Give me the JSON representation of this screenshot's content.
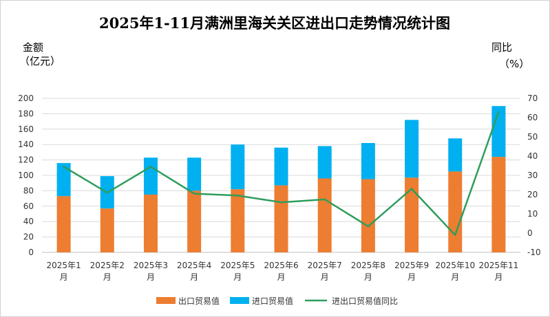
{
  "chart_data": {
    "type": "bar",
    "title": "2025年1-11月满洲里海关关区进出口走势情况统计图",
    "y_left_label_line1": "金额",
    "y_left_label_line2": "（亿元）",
    "y_right_label_line1": "同比",
    "y_right_label_line2": "（%）",
    "categories": [
      [
        "2025年1",
        "月"
      ],
      [
        "2025年2",
        "月"
      ],
      [
        "2025年3",
        "月"
      ],
      [
        "2025年4",
        "月"
      ],
      [
        "2025年5",
        "月"
      ],
      [
        "2025年6",
        "月"
      ],
      [
        "2025年7",
        "月"
      ],
      [
        "2025年8",
        "月"
      ],
      [
        "2025年9",
        "月"
      ],
      [
        "2025年10",
        "月"
      ],
      [
        "2025年11",
        "月"
      ]
    ],
    "series": [
      {
        "name": "出口贸易值",
        "type": "stacked-bar",
        "axis": "left",
        "color": "#ED7D31",
        "values": [
          73,
          57,
          75,
          80,
          82,
          87,
          96,
          95,
          97,
          105,
          124
        ]
      },
      {
        "name": "进口贸易值",
        "type": "stacked-bar",
        "axis": "left",
        "color": "#00B0F0",
        "values": [
          43,
          42,
          48,
          43,
          58,
          49,
          42,
          47,
          75,
          43,
          66
        ]
      },
      {
        "name": "进出口贸易值同比",
        "type": "line",
        "axis": "right",
        "color": "#2E9D5C",
        "values": [
          34.5,
          21,
          34.5,
          20.5,
          19.5,
          16,
          17.5,
          3.5,
          23,
          -1,
          63
        ]
      }
    ],
    "y_left": {
      "min": 0,
      "max": 200,
      "step": 20
    },
    "y_right": {
      "min": -10,
      "max": 70,
      "step": 10
    },
    "grid": true,
    "legend_position": "bottom"
  }
}
